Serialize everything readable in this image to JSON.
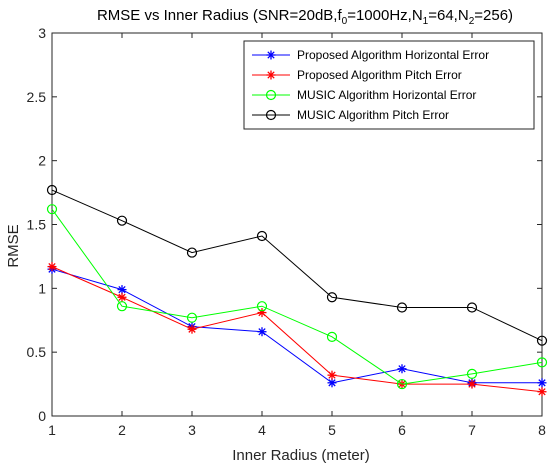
{
  "chart_data": {
    "type": "line",
    "title": {
      "prefix": "RMSE vs Inner Radius (SNR=20dB,f",
      "f_sub": "0",
      "part2": "=1000Hz,N",
      "n1_sub": "1",
      "part3": "=64,N",
      "n2_sub": "2",
      "part4": "=256)"
    },
    "xlabel": "Inner Radius (meter)",
    "ylabel": "RMSE",
    "xlim": [
      1,
      8
    ],
    "ylim": [
      0,
      3
    ],
    "xticks": [
      "1",
      "2",
      "3",
      "4",
      "5",
      "6",
      "7",
      "8"
    ],
    "yticks": [
      "0",
      "0.5",
      "1",
      "1.5",
      "2",
      "2.5",
      "3"
    ],
    "grid": false,
    "legend_position": "top-right",
    "x": [
      1,
      2,
      3,
      4,
      5,
      6,
      7,
      8
    ],
    "series": [
      {
        "name": "Proposed Algorithm Horizontal Error",
        "color": "#0000ff",
        "marker": "asterisk",
        "values": [
          1.15,
          0.99,
          0.7,
          0.66,
          0.26,
          0.37,
          0.26,
          0.26
        ]
      },
      {
        "name": "Proposed Algorithm Pitch Error",
        "color": "#ff0000",
        "marker": "asterisk",
        "values": [
          1.17,
          0.93,
          0.68,
          0.81,
          0.32,
          0.25,
          0.25,
          0.19
        ]
      },
      {
        "name": "MUSIC Algorithm Horizontal Error",
        "color": "#00ff00",
        "marker": "circle",
        "values": [
          1.62,
          0.86,
          0.77,
          0.86,
          0.62,
          0.25,
          0.33,
          0.42
        ]
      },
      {
        "name": "MUSIC Algorithm Pitch Error",
        "color": "#000000",
        "marker": "circle",
        "values": [
          1.77,
          1.53,
          1.28,
          1.41,
          0.93,
          0.85,
          0.85,
          0.59
        ]
      }
    ]
  }
}
